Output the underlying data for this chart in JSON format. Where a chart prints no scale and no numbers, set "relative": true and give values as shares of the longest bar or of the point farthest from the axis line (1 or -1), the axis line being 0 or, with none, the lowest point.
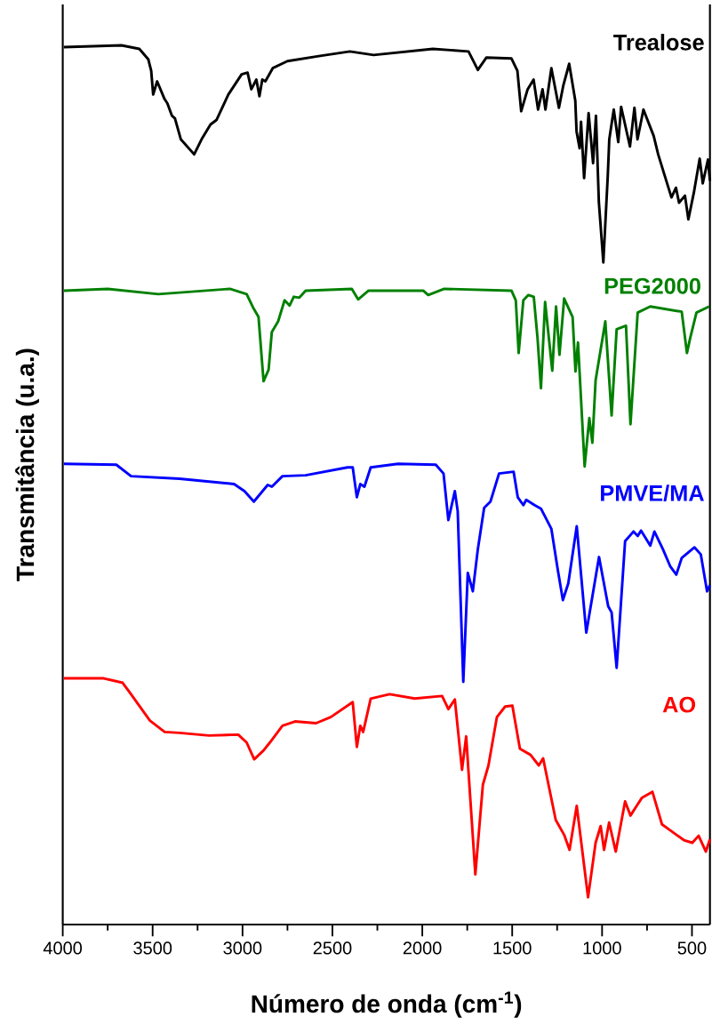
{
  "chart_data": {
    "type": "line",
    "relative": true,
    "xlabel": "Número de onda (cm$^{-1}$)",
    "ylabel": "Transmitância (u.a.)",
    "xlim": [
      4000,
      400
    ],
    "xticks": [
      4000,
      {
        "value": 3750,
        "label": null
      },
      3500,
      {
        "value": 3250,
        "label": null
      },
      3000,
      {
        "value": 2750,
        "label": null
      },
      2500,
      {
        "value": 2250,
        "label": null
      },
      2000,
      {
        "value": 1750,
        "label": null
      },
      1500,
      {
        "value": 1250,
        "label": null
      },
      1000,
      {
        "value": 750,
        "label": null
      },
      500
    ],
    "series": [
      {
        "name": "Trealose",
        "color": "#000000",
        "x": [
          3994,
          3673,
          3574,
          3524,
          3508,
          3497,
          3475,
          3434,
          3418,
          3393,
          3376,
          3343,
          3269,
          3228,
          3178,
          3145,
          3079,
          3005,
          2972,
          2951,
          2923,
          2906,
          2890,
          2873,
          2832,
          2750,
          2568,
          2403,
          2271,
          1941,
          1743,
          1691,
          1644,
          1504,
          1471,
          1450,
          1414,
          1381,
          1356,
          1331,
          1315,
          1282,
          1240,
          1216,
          1183,
          1149,
          1142,
          1125,
          1117,
          1100,
          1075,
          1050,
          1034,
          1018,
          993,
          968,
          960,
          935,
          910,
          894,
          845,
          820,
          803,
          770,
          713,
          688,
          655,
          614,
          589,
          572,
          539,
          520,
          490,
          457,
          440,
          411,
          400
        ],
        "values": [
          0.998,
          1.0,
          0.996,
          0.984,
          0.971,
          0.944,
          0.959,
          0.939,
          0.934,
          0.92,
          0.917,
          0.893,
          0.876,
          0.893,
          0.91,
          0.915,
          0.944,
          0.967,
          0.969,
          0.95,
          0.961,
          0.942,
          0.961,
          0.959,
          0.974,
          0.982,
          0.988,
          0.993,
          0.989,
          0.996,
          0.993,
          0.972,
          0.986,
          0.985,
          0.971,
          0.925,
          0.95,
          0.961,
          0.927,
          0.95,
          0.927,
          0.974,
          0.929,
          0.954,
          0.979,
          0.937,
          0.902,
          0.883,
          0.913,
          0.849,
          0.923,
          0.866,
          0.92,
          0.822,
          0.753,
          0.853,
          0.893,
          0.927,
          0.89,
          0.93,
          0.885,
          0.929,
          0.893,
          0.927,
          0.897,
          0.876,
          0.854,
          0.827,
          0.838,
          0.821,
          0.829,
          0.802,
          0.832,
          0.871,
          0.843,
          0.87,
          0.846
        ]
      },
      {
        "name": "PEG2000",
        "color": "#008000",
        "x": [
          3994,
          3749,
          3468,
          3070,
          2977,
          2942,
          2911,
          2883,
          2855,
          2837,
          2802,
          2766,
          2738,
          2715,
          2684,
          2649,
          2392,
          2357,
          2299,
          1995,
          1967,
          1878,
          1504,
          1480,
          1464,
          1438,
          1410,
          1380,
          1359,
          1340,
          1317,
          1277,
          1256,
          1237,
          1211,
          1164,
          1148,
          1134,
          1097,
          1071,
          1054,
          1036,
          982,
          947,
          919,
          867,
          842,
          802,
          732,
          557,
          528,
          510,
          475,
          404
        ],
        "values": [
          0.721,
          0.723,
          0.717,
          0.723,
          0.717,
          0.702,
          0.691,
          0.618,
          0.631,
          0.674,
          0.686,
          0.71,
          0.704,
          0.714,
          0.713,
          0.721,
          0.723,
          0.711,
          0.721,
          0.721,
          0.716,
          0.723,
          0.721,
          0.71,
          0.65,
          0.71,
          0.716,
          0.714,
          0.667,
          0.61,
          0.708,
          0.63,
          0.703,
          0.648,
          0.712,
          0.691,
          0.629,
          0.662,
          0.521,
          0.576,
          0.548,
          0.619,
          0.686,
          0.579,
          0.677,
          0.681,
          0.569,
          0.696,
          0.703,
          0.697,
          0.65,
          0.667,
          0.696,
          0.703
        ]
      },
      {
        "name": "PMVE/MA",
        "color": "#0000ff",
        "x": [
          3994,
          3702,
          3620,
          3351,
          3047,
          2989,
          2937,
          2860,
          2837,
          2778,
          2649,
          2416,
          2387,
          2364,
          2345,
          2322,
          2287,
          2135,
          1925,
          1882,
          1855,
          1819,
          1803,
          1772,
          1747,
          1719,
          1691,
          1656,
          1621,
          1573,
          1492,
          1469,
          1438,
          1422,
          1375,
          1340,
          1282,
          1246,
          1218,
          1188,
          1141,
          1088,
          1017,
          966,
          947,
          919,
          872,
          825,
          802,
          783,
          732,
          709,
          662,
          620,
          587,
          557,
          486,
          451,
          416,
          400
        ],
        "values": [
          0.524,
          0.523,
          0.51,
          0.507,
          0.501,
          0.493,
          0.481,
          0.5,
          0.498,
          0.51,
          0.511,
          0.52,
          0.52,
          0.486,
          0.501,
          0.498,
          0.52,
          0.524,
          0.523,
          0.513,
          0.46,
          0.493,
          0.47,
          0.276,
          0.4,
          0.379,
          0.427,
          0.474,
          0.481,
          0.513,
          0.515,
          0.486,
          0.477,
          0.483,
          0.477,
          0.473,
          0.45,
          0.403,
          0.369,
          0.388,
          0.453,
          0.332,
          0.418,
          0.362,
          0.355,
          0.292,
          0.436,
          0.447,
          0.442,
          0.448,
          0.431,
          0.447,
          0.427,
          0.407,
          0.398,
          0.417,
          0.429,
          0.421,
          0.379,
          0.386
        ]
      },
      {
        "name": "AO",
        "color": "#ff0000",
        "x": [
          3994,
          3772,
          3667,
          3631,
          3515,
          3433,
          3351,
          3187,
          3024,
          2977,
          2935,
          2883,
          2848,
          2778,
          2708,
          2591,
          2509,
          2387,
          2364,
          2345,
          2329,
          2287,
          2182,
          2042,
          1890,
          1855,
          1819,
          1779,
          1756,
          1705,
          1663,
          1632,
          1585,
          1539,
          1499,
          1457,
          1398,
          1352,
          1328,
          1258,
          1211,
          1181,
          1141,
          1078,
          1036,
          1008,
          989,
          961,
          924,
          872,
          842,
          814,
          779,
          720,
          667,
          627,
          545,
          498,
          463,
          423,
          400
        ],
        "values": [
          0.28,
          0.28,
          0.275,
          0.265,
          0.232,
          0.219,
          0.218,
          0.215,
          0.216,
          0.207,
          0.188,
          0.198,
          0.207,
          0.226,
          0.231,
          0.229,
          0.236,
          0.253,
          0.202,
          0.226,
          0.219,
          0.257,
          0.262,
          0.257,
          0.26,
          0.245,
          0.256,
          0.176,
          0.214,
          0.057,
          0.159,
          0.181,
          0.236,
          0.248,
          0.249,
          0.2,
          0.193,
          0.181,
          0.189,
          0.119,
          0.102,
          0.085,
          0.135,
          0.031,
          0.093,
          0.112,
          0.085,
          0.116,
          0.083,
          0.14,
          0.124,
          0.133,
          0.144,
          0.151,
          0.114,
          0.108,
          0.096,
          0.093,
          0.101,
          0.083,
          0.097
        ]
      }
    ]
  }
}
